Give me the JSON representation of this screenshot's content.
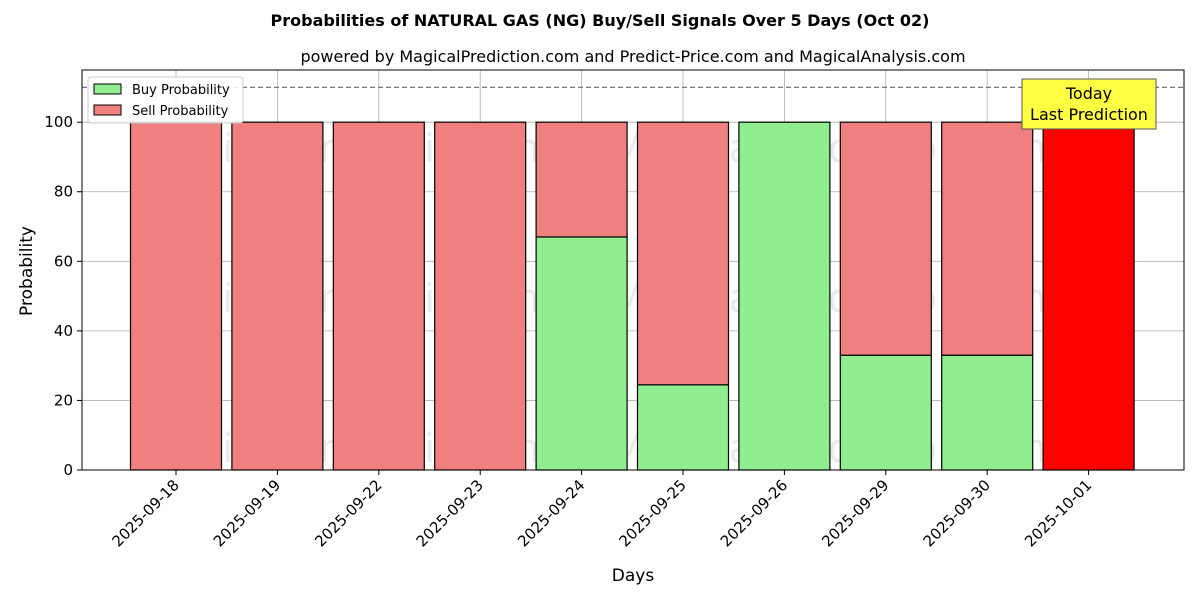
{
  "chart_data": {
    "type": "bar",
    "stacked": true,
    "title": "Probabilities of NATURAL GAS (NG) Buy/Sell Signals Over 5 Days (Oct 02)",
    "subtitle": "powered by MagicalPrediction.com and Predict-Price.com and MagicalAnalysis.com",
    "xlabel": "Days",
    "ylabel": "Probability",
    "ylim": [
      0,
      115
    ],
    "yticks": [
      0,
      20,
      40,
      60,
      80,
      100
    ],
    "grid": true,
    "legend_position": "top-left",
    "reference_line": 110,
    "categories": [
      "2025-09-18",
      "2025-09-19",
      "2025-09-22",
      "2025-09-23",
      "2025-09-24",
      "2025-09-25",
      "2025-09-26",
      "2025-09-29",
      "2025-09-30",
      "2025-10-01"
    ],
    "series": [
      {
        "name": "Buy Probability",
        "color": "#90ee90",
        "values": [
          0,
          0,
          0,
          0,
          67,
          24.5,
          100,
          33,
          33,
          0
        ]
      },
      {
        "name": "Sell Probability",
        "color": "#f08080",
        "values": [
          100,
          100,
          100,
          100,
          33,
          75.5,
          0,
          67,
          67,
          100
        ]
      }
    ],
    "highlight": {
      "category": "2025-10-01",
      "color": "#ff0000"
    },
    "annotation": {
      "lines": [
        "Today",
        "Last Prediction"
      ],
      "color": "#ffff44"
    },
    "watermarks": [
      "MagicalAnalysis.com",
      "MagicalPrediction.com"
    ]
  }
}
